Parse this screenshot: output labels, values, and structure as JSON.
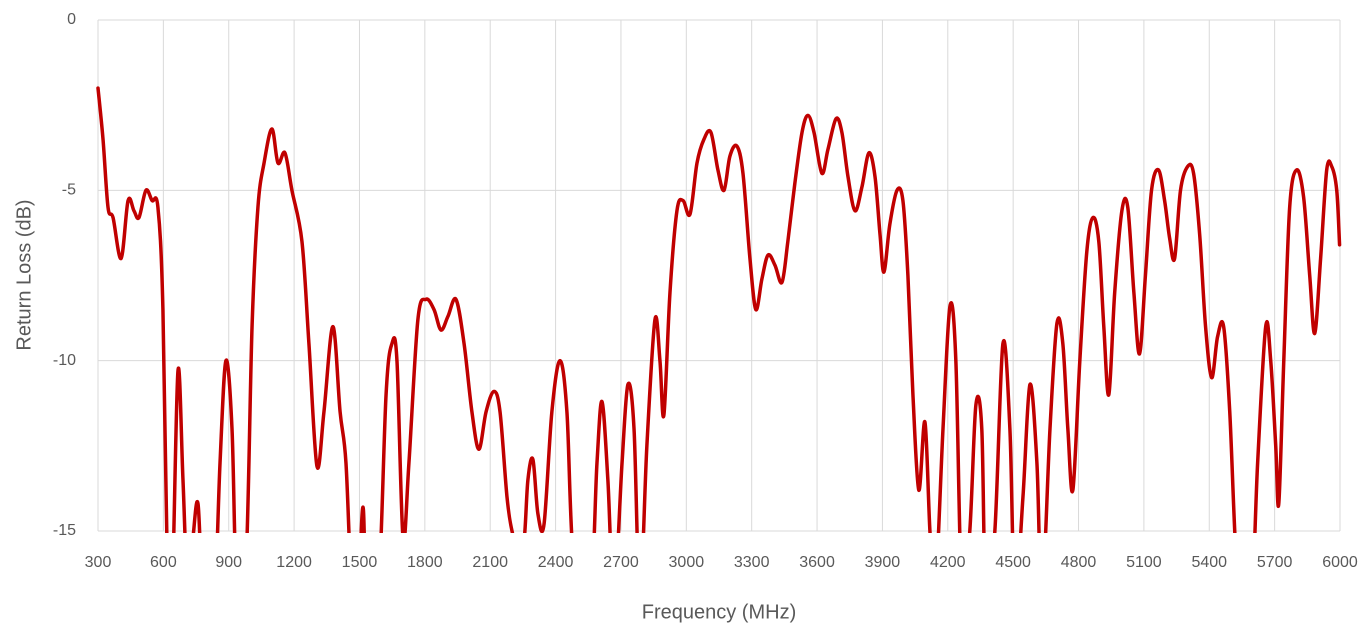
{
  "chart_data": {
    "type": "line",
    "x_label": "Frequency (MHz)",
    "y_label": "Return Loss (dB)",
    "xlim": [
      300,
      6000
    ],
    "xticks": [
      300,
      600,
      900,
      1200,
      1500,
      1800,
      2100,
      2400,
      2700,
      3000,
      3300,
      3600,
      3900,
      4200,
      4500,
      4800,
      5100,
      5400,
      5700,
      6000
    ],
    "ylim": [
      -15,
      0
    ],
    "yticks": [
      -15,
      -10,
      -5,
      0
    ],
    "grid": true,
    "x": [
      300,
      323,
      346,
      369,
      406,
      438,
      465,
      488,
      520,
      548,
      575,
      598,
      621,
      640,
      667,
      690,
      713,
      736,
      759,
      782,
      828,
      860,
      887,
      915,
      938,
      979,
      1007,
      1034,
      1062,
      1098,
      1126,
      1158,
      1190,
      1236,
      1268,
      1305,
      1337,
      1378,
      1411,
      1438,
      1466,
      1493,
      1516,
      1534,
      1585,
      1622,
      1649,
      1672,
      1700,
      1727,
      1768,
      1805,
      1842,
      1874,
      1906,
      1943,
      1980,
      2016,
      2048,
      2081,
      2117,
      2145,
      2177,
      2200,
      2227,
      2255,
      2273,
      2296,
      2319,
      2347,
      2383,
      2420,
      2452,
      2484,
      2558,
      2590,
      2613,
      2640,
      2668,
      2705,
      2732,
      2760,
      2787,
      2819,
      2856,
      2879,
      2897,
      2925,
      2957,
      2985,
      3017,
      3049,
      3081,
      3113,
      3145,
      3173,
      3200,
      3232,
      3260,
      3292,
      3319,
      3347,
      3375,
      3407,
      3439,
      3466,
      3498,
      3531,
      3558,
      3586,
      3622,
      3650,
      3687,
      3714,
      3742,
      3774,
      3806,
      3838,
      3866,
      3889,
      3907,
      3934,
      3967,
      3994,
      4017,
      4040,
      4067,
      4095,
      4118,
      4141,
      4178,
      4210,
      4237,
      4265,
      4301,
      4329,
      4356,
      4375,
      4416,
      4453,
      4485,
      4508,
      4545,
      4577,
      4609,
      4632,
      4669,
      4701,
      4728,
      4751,
      4774,
      4806,
      4838,
      4866,
      4893,
      4916,
      4939,
      4966,
      4999,
      5026,
      5054,
      5080,
      5107,
      5135,
      5167,
      5195,
      5218,
      5241,
      5268,
      5301,
      5328,
      5356,
      5383,
      5411,
      5438,
      5466,
      5494,
      5521,
      5548,
      5594,
      5622,
      5659,
      5682,
      5705,
      5719,
      5742,
      5769,
      5801,
      5833,
      5861,
      5884,
      5911,
      5939,
      5962,
      5985,
      5998
    ],
    "series": [
      {
        "name": "Return Loss",
        "color": "#c00000",
        "values": [
          -2.0,
          -3.5,
          -5.5,
          -5.8,
          -7.0,
          -5.3,
          -5.6,
          -5.8,
          -5.0,
          -5.3,
          -5.5,
          -8.5,
          -17,
          -17,
          -10.3,
          -13.5,
          -17,
          -15.2,
          -14.2,
          -17,
          -18,
          -13,
          -10.0,
          -12,
          -17,
          -16,
          -9,
          -5.5,
          -4.2,
          -3.2,
          -4.2,
          -3.9,
          -5.0,
          -6.5,
          -9.5,
          -13.1,
          -11.5,
          -9.0,
          -11.5,
          -13,
          -17,
          -17,
          -14.3,
          -17,
          -17,
          -11,
          -9.5,
          -10,
          -15.2,
          -13,
          -8.8,
          -8.2,
          -8.5,
          -9.1,
          -8.7,
          -8.2,
          -9.5,
          -11.5,
          -12.6,
          -11.5,
          -10.9,
          -11.5,
          -14,
          -15,
          -15.5,
          -15.3,
          -13.5,
          -12.9,
          -14.5,
          -14.8,
          -11.5,
          -10.0,
          -11.5,
          -16,
          -17,
          -13,
          -11.2,
          -13.5,
          -17,
          -13,
          -10.7,
          -12,
          -17,
          -12.5,
          -8.8,
          -10,
          -11.6,
          -8,
          -5.6,
          -5.3,
          -5.7,
          -4.2,
          -3.5,
          -3.3,
          -4.4,
          -5.0,
          -4.0,
          -3.7,
          -4.5,
          -7.0,
          -8.5,
          -7.6,
          -6.9,
          -7.2,
          -7.7,
          -6.5,
          -4.8,
          -3.3,
          -2.8,
          -3.3,
          -4.5,
          -3.8,
          -2.9,
          -3.3,
          -4.6,
          -5.6,
          -4.9,
          -3.9,
          -4.6,
          -6.3,
          -7.4,
          -6.0,
          -5.0,
          -5.3,
          -7.5,
          -11,
          -13.8,
          -11.8,
          -15,
          -17,
          -12,
          -8.4,
          -10,
          -17,
          -15,
          -11.3,
          -12,
          -17,
          -15,
          -9.5,
          -12,
          -17,
          -14,
          -10.7,
          -13,
          -17,
          -12,
          -8.9,
          -9.5,
          -12,
          -13.8,
          -10,
          -6.8,
          -5.8,
          -6.5,
          -9,
          -11,
          -8,
          -5.6,
          -5.5,
          -8,
          -9.8,
          -7.5,
          -5,
          -4.4,
          -5.3,
          -6.4,
          -7.0,
          -5,
          -4.3,
          -4.5,
          -6.3,
          -9,
          -10.5,
          -9.3,
          -9.0,
          -11.5,
          -15.5,
          -17,
          -17,
          -13,
          -9.0,
          -10,
          -12.5,
          -14.2,
          -10,
          -5.5,
          -4.4,
          -5.2,
          -7.5,
          -9.2,
          -7,
          -4.4,
          -4.3,
          -5,
          -6.6
        ]
      }
    ]
  }
}
